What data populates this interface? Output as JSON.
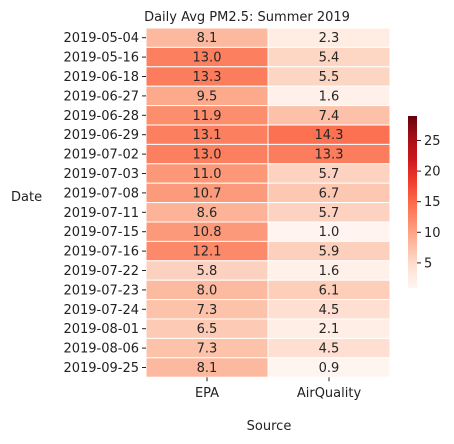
{
  "chart_data": {
    "type": "heatmap",
    "title": "Daily Avg PM2.5: Summer 2019",
    "xlabel": "Source",
    "ylabel": "Date",
    "columns": [
      "EPA",
      "AirQuality"
    ],
    "rows": [
      "2019-05-04",
      "2019-05-16",
      "2019-06-18",
      "2019-06-27",
      "2019-06-28",
      "2019-06-29",
      "2019-07-02",
      "2019-07-03",
      "2019-07-08",
      "2019-07-11",
      "2019-07-15",
      "2019-07-16",
      "2019-07-22",
      "2019-07-23",
      "2019-07-24",
      "2019-08-01",
      "2019-08-06",
      "2019-09-25"
    ],
    "values": [
      [
        8.1,
        2.3
      ],
      [
        13.0,
        5.4
      ],
      [
        13.3,
        5.5
      ],
      [
        9.5,
        1.6
      ],
      [
        11.9,
        7.4
      ],
      [
        13.1,
        14.3
      ],
      [
        13.0,
        13.3
      ],
      [
        11.0,
        5.7
      ],
      [
        10.7,
        6.7
      ],
      [
        8.6,
        5.7
      ],
      [
        10.8,
        1.0
      ],
      [
        12.1,
        5.9
      ],
      [
        5.8,
        1.6
      ],
      [
        8.0,
        6.1
      ],
      [
        7.3,
        4.5
      ],
      [
        6.5,
        2.1
      ],
      [
        7.3,
        4.5
      ],
      [
        8.1,
        0.9
      ]
    ],
    "value_labels": [
      [
        "8.1",
        "2.3"
      ],
      [
        "13.0",
        "5.4"
      ],
      [
        "13.3",
        "5.5"
      ],
      [
        "9.5",
        "1.6"
      ],
      [
        "11.9",
        "7.4"
      ],
      [
        "13.1",
        "14.3"
      ],
      [
        "13.0",
        "13.3"
      ],
      [
        "11.0",
        "5.7"
      ],
      [
        "10.7",
        "6.7"
      ],
      [
        "8.6",
        "5.7"
      ],
      [
        "10.8",
        "1.0"
      ],
      [
        "12.1",
        "5.9"
      ],
      [
        "5.8",
        "1.6"
      ],
      [
        "8.0",
        "6.1"
      ],
      [
        "7.3",
        "4.5"
      ],
      [
        "6.5",
        "2.1"
      ],
      [
        "7.3",
        "4.5"
      ],
      [
        "8.1",
        "0.9"
      ]
    ],
    "colormap": "Reds",
    "vmin": 0.9,
    "vmax": 29,
    "colorbar_ticks": [
      5,
      10,
      15,
      20,
      25
    ],
    "colorbar_tick_labels": [
      "5",
      "10",
      "15",
      "20",
      "25"
    ]
  }
}
